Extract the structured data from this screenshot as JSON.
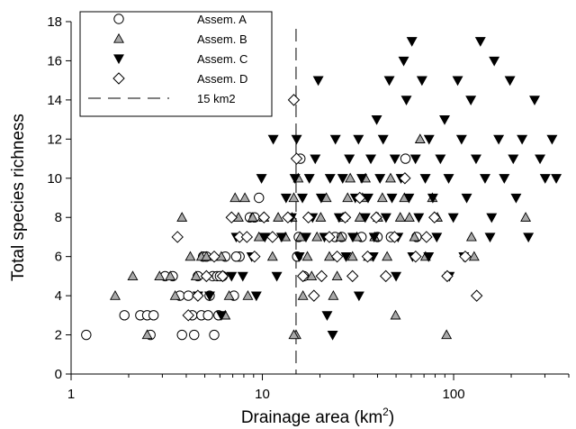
{
  "chart_data": {
    "type": "scatter",
    "title": "",
    "xlabel_main": "Drainage area (km",
    "xlabel_sup": "2",
    "xlabel_close": ")",
    "ylabel": "Total species richness",
    "x_scale": "log",
    "xlim": [
      1,
      400
    ],
    "ylim": [
      0,
      18
    ],
    "x_ticks": [
      1,
      10,
      100
    ],
    "x_tick_labels": [
      "1",
      "10",
      "100"
    ],
    "y_ticks": [
      0,
      2,
      4,
      6,
      8,
      10,
      12,
      14,
      16,
      18
    ],
    "y_tick_labels": [
      "0",
      "2",
      "4",
      "6",
      "8",
      "10",
      "12",
      "14",
      "16",
      "18"
    ],
    "grid": false,
    "legend_position": "top-left",
    "reference_line": {
      "label": "15 km2",
      "x": 15,
      "style": "dashed"
    },
    "series": [
      {
        "name": "Assem. A",
        "marker": "circle-open",
        "color": "#000000",
        "points": [
          [
            1.2,
            2
          ],
          [
            1.9,
            3
          ],
          [
            2.3,
            3
          ],
          [
            2.5,
            3
          ],
          [
            2.7,
            3
          ],
          [
            2.6,
            2
          ],
          [
            3.8,
            2
          ],
          [
            4.4,
            2
          ],
          [
            5.6,
            2
          ],
          [
            3.1,
            5
          ],
          [
            3.4,
            5
          ],
          [
            3.7,
            4
          ],
          [
            4.1,
            4
          ],
          [
            4.6,
            5
          ],
          [
            4.9,
            6
          ],
          [
            5.1,
            6
          ],
          [
            5.5,
            5
          ],
          [
            5.8,
            5
          ],
          [
            6.2,
            5
          ],
          [
            4.3,
            3
          ],
          [
            4.8,
            3
          ],
          [
            5.2,
            3
          ],
          [
            5.9,
            3
          ],
          [
            6.4,
            6
          ],
          [
            7.1,
            4
          ],
          [
            7.6,
            6
          ],
          [
            8.6,
            8
          ],
          [
            9.1,
            8
          ],
          [
            9.6,
            9
          ],
          [
            7.3,
            6
          ],
          [
            6.0,
            5
          ],
          [
            5.3,
            4
          ],
          [
            15.2,
            6
          ],
          [
            15.5,
            7
          ],
          [
            15.8,
            11
          ],
          [
            16.5,
            5
          ],
          [
            24,
            7
          ],
          [
            26,
            7
          ],
          [
            33,
            7
          ],
          [
            40,
            7
          ],
          [
            47,
            7
          ],
          [
            56,
            11
          ],
          [
            64,
            7
          ]
        ]
      },
      {
        "name": "Assem. B",
        "marker": "triangle-up-filled",
        "color": "#a9a9a9",
        "points": [
          [
            1.7,
            4
          ],
          [
            2.1,
            5
          ],
          [
            2.5,
            2
          ],
          [
            2.9,
            5
          ],
          [
            3.3,
            5
          ],
          [
            3.5,
            4
          ],
          [
            3.8,
            8
          ],
          [
            4.2,
            6
          ],
          [
            4.5,
            5
          ],
          [
            4.8,
            6
          ],
          [
            5.1,
            6
          ],
          [
            5.6,
            6
          ],
          [
            6.1,
            6
          ],
          [
            6.4,
            3
          ],
          [
            6.7,
            4
          ],
          [
            7.2,
            9
          ],
          [
            7.5,
            8
          ],
          [
            8.1,
            9
          ],
          [
            8.4,
            4
          ],
          [
            8.9,
            8
          ],
          [
            9.6,
            7
          ],
          [
            10.2,
            8
          ],
          [
            11.3,
            6
          ],
          [
            12.1,
            8
          ],
          [
            13.2,
            7
          ],
          [
            14.3,
            8
          ],
          [
            14.6,
            9
          ],
          [
            15.4,
            10
          ],
          [
            15.8,
            7
          ],
          [
            16.3,
            4
          ],
          [
            17.2,
            6
          ],
          [
            18.1,
            5
          ],
          [
            19.3,
            7
          ],
          [
            20.2,
            8
          ],
          [
            21.6,
            9
          ],
          [
            22.4,
            6
          ],
          [
            23.5,
            4
          ],
          [
            24.6,
            5
          ],
          [
            25.7,
            7
          ],
          [
            26.4,
            8
          ],
          [
            27.9,
            9
          ],
          [
            28.8,
            10
          ],
          [
            29.6,
            6
          ],
          [
            31.2,
            7
          ],
          [
            32.3,
            8
          ],
          [
            33.4,
            9
          ],
          [
            34.6,
            10
          ],
          [
            35.8,
            6
          ],
          [
            38.6,
            7
          ],
          [
            40.2,
            8
          ],
          [
            42.4,
            9
          ],
          [
            44.9,
            6
          ],
          [
            46.8,
            10
          ],
          [
            49.7,
            3
          ],
          [
            52.6,
            8
          ],
          [
            55.3,
            9
          ],
          [
            58.7,
            8
          ],
          [
            62.4,
            7
          ],
          [
            66.8,
            12
          ],
          [
            71.3,
            6
          ],
          [
            77.4,
            9
          ],
          [
            82.3,
            8
          ],
          [
            91.8,
            2
          ],
          [
            124,
            7
          ],
          [
            128,
            6
          ],
          [
            238,
            8
          ],
          [
            15,
            2
          ],
          [
            14.6,
            2
          ]
        ]
      },
      {
        "name": "Assem. C",
        "marker": "triangle-down-filled",
        "color": "#000000",
        "points": [
          [
            4.6,
            4
          ],
          [
            5.3,
            4
          ],
          [
            6.1,
            3
          ],
          [
            6.9,
            5
          ],
          [
            7.3,
            7
          ],
          [
            7.9,
            5
          ],
          [
            8.8,
            6
          ],
          [
            9.3,
            4
          ],
          [
            9.9,
            10
          ],
          [
            10.3,
            7
          ],
          [
            11.4,
            12
          ],
          [
            11.9,
            5
          ],
          [
            12.6,
            7
          ],
          [
            13.3,
            9
          ],
          [
            14.2,
            8
          ],
          [
            14.8,
            10
          ],
          [
            15.1,
            12
          ],
          [
            15.6,
            6
          ],
          [
            16.2,
            9
          ],
          [
            16.9,
            7
          ],
          [
            17.6,
            10
          ],
          [
            18.3,
            8
          ],
          [
            18.9,
            11
          ],
          [
            19.6,
            15
          ],
          [
            20.3,
            9
          ],
          [
            21.1,
            7
          ],
          [
            21.8,
            3
          ],
          [
            22.6,
            10
          ],
          [
            23.3,
            2
          ],
          [
            24.1,
            12
          ],
          [
            25.2,
            8
          ],
          [
            26.3,
            10
          ],
          [
            27.4,
            6
          ],
          [
            28.5,
            11
          ],
          [
            29.7,
            7
          ],
          [
            30.6,
            9
          ],
          [
            31.8,
            12
          ],
          [
            33.1,
            10
          ],
          [
            34.5,
            8
          ],
          [
            35.7,
            9
          ],
          [
            36.9,
            11
          ],
          [
            38.4,
            7
          ],
          [
            39.6,
            13
          ],
          [
            41.2,
            10
          ],
          [
            42.8,
            12
          ],
          [
            44.3,
            8
          ],
          [
            46.1,
            15
          ],
          [
            47.6,
            9
          ],
          [
            49.3,
            11
          ],
          [
            51.2,
            7
          ],
          [
            53.1,
            10
          ],
          [
            54.8,
            16
          ],
          [
            56.6,
            14
          ],
          [
            58.4,
            9
          ],
          [
            60.5,
            17
          ],
          [
            63.2,
            11
          ],
          [
            65.7,
            8
          ],
          [
            68.3,
            15
          ],
          [
            71.1,
            10
          ],
          [
            74.4,
            12
          ],
          [
            77.8,
            9
          ],
          [
            81.6,
            7
          ],
          [
            85.3,
            11
          ],
          [
            89.7,
            13
          ],
          [
            94.2,
            10
          ],
          [
            99.6,
            8
          ],
          [
            105,
            15
          ],
          [
            110,
            12
          ],
          [
            117,
            9
          ],
          [
            123,
            14
          ],
          [
            131,
            11
          ],
          [
            138,
            17
          ],
          [
            146,
            10
          ],
          [
            155,
            7
          ],
          [
            163,
            16
          ],
          [
            172,
            12
          ],
          [
            184,
            10
          ],
          [
            197,
            15
          ],
          [
            212,
            9
          ],
          [
            228,
            12
          ],
          [
            246,
            7
          ],
          [
            265,
            14
          ],
          [
            283,
            11
          ],
          [
            301,
            10
          ],
          [
            327,
            12
          ],
          [
            344,
            10
          ],
          [
            158,
            8
          ],
          [
            205,
            11
          ],
          [
            113,
            6
          ],
          [
            95,
            5
          ],
          [
            74,
            6
          ],
          [
            61,
            6
          ],
          [
            50,
            5
          ],
          [
            38,
            6
          ],
          [
            32,
            4
          ]
        ]
      },
      {
        "name": "Assem. D",
        "marker": "diamond-open",
        "color": "#000000",
        "points": [
          [
            3.6,
            7
          ],
          [
            4.1,
            3
          ],
          [
            4.6,
            4
          ],
          [
            5.1,
            5
          ],
          [
            5.6,
            6
          ],
          [
            6.2,
            5
          ],
          [
            6.9,
            8
          ],
          [
            7.6,
            7
          ],
          [
            8.3,
            7
          ],
          [
            9.1,
            6
          ],
          [
            10.2,
            8
          ],
          [
            11.3,
            7
          ],
          [
            13.6,
            8
          ],
          [
            14.6,
            14
          ],
          [
            15.1,
            11
          ],
          [
            16.3,
            5
          ],
          [
            17.4,
            8
          ],
          [
            18.6,
            4
          ],
          [
            20.4,
            5
          ],
          [
            22.4,
            7
          ],
          [
            24.6,
            6
          ],
          [
            27.1,
            8
          ],
          [
            29.6,
            5
          ],
          [
            32.3,
            9
          ],
          [
            35.5,
            6
          ],
          [
            39.4,
            8
          ],
          [
            44.2,
            5
          ],
          [
            49.1,
            7
          ],
          [
            55.6,
            10
          ],
          [
            63.3,
            6
          ],
          [
            72.1,
            7
          ],
          [
            79.4,
            8
          ],
          [
            92.6,
            5
          ],
          [
            115,
            6
          ],
          [
            132,
            4
          ]
        ]
      }
    ]
  }
}
